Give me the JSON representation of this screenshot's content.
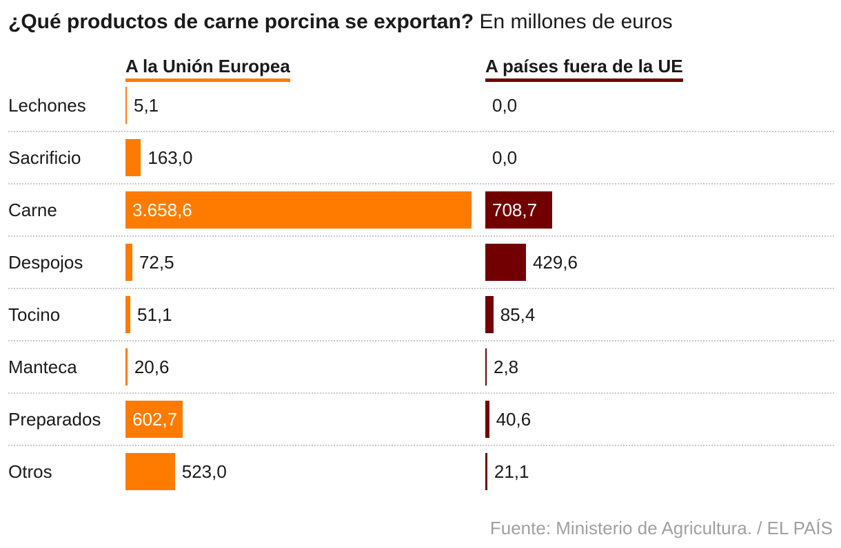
{
  "title": {
    "bold": "¿Qué productos de carne porcina se exportan?",
    "light": "En millones de euros"
  },
  "columns": {
    "eu": "A la Unión Europea",
    "non_eu": "A países fuera de la UE"
  },
  "source": "Fuente: Ministerio de Agricultura. / EL PAÍS",
  "colors": {
    "eu": "#ff7b00",
    "non_eu": "#730000"
  },
  "chart_data": {
    "type": "bar",
    "title": "¿Qué productos de carne porcina se exportan? En millones de euros",
    "categories": [
      "Lechones",
      "Sacrificio",
      "Carne",
      "Despojos",
      "Tocino",
      "Manteca",
      "Preparados",
      "Otros"
    ],
    "series": [
      {
        "name": "A la Unión Europea",
        "values": [
          5.1,
          163.0,
          3658.6,
          72.5,
          51.1,
          20.6,
          602.7,
          523.0
        ],
        "labels": [
          "5,1",
          "163,0",
          "3.658,6",
          "72,5",
          "51,1",
          "20,6",
          "602,7",
          "523,0"
        ]
      },
      {
        "name": "A países fuera de la UE",
        "values": [
          0.0,
          0.0,
          708.7,
          429.6,
          85.4,
          2.8,
          40.6,
          21.1
        ],
        "labels": [
          "0,0",
          "0,0",
          "708,7",
          "429,6",
          "85,4",
          "2,8",
          "40,6",
          "21,1"
        ]
      }
    ],
    "xlim": [
      0,
      3658.6
    ]
  }
}
